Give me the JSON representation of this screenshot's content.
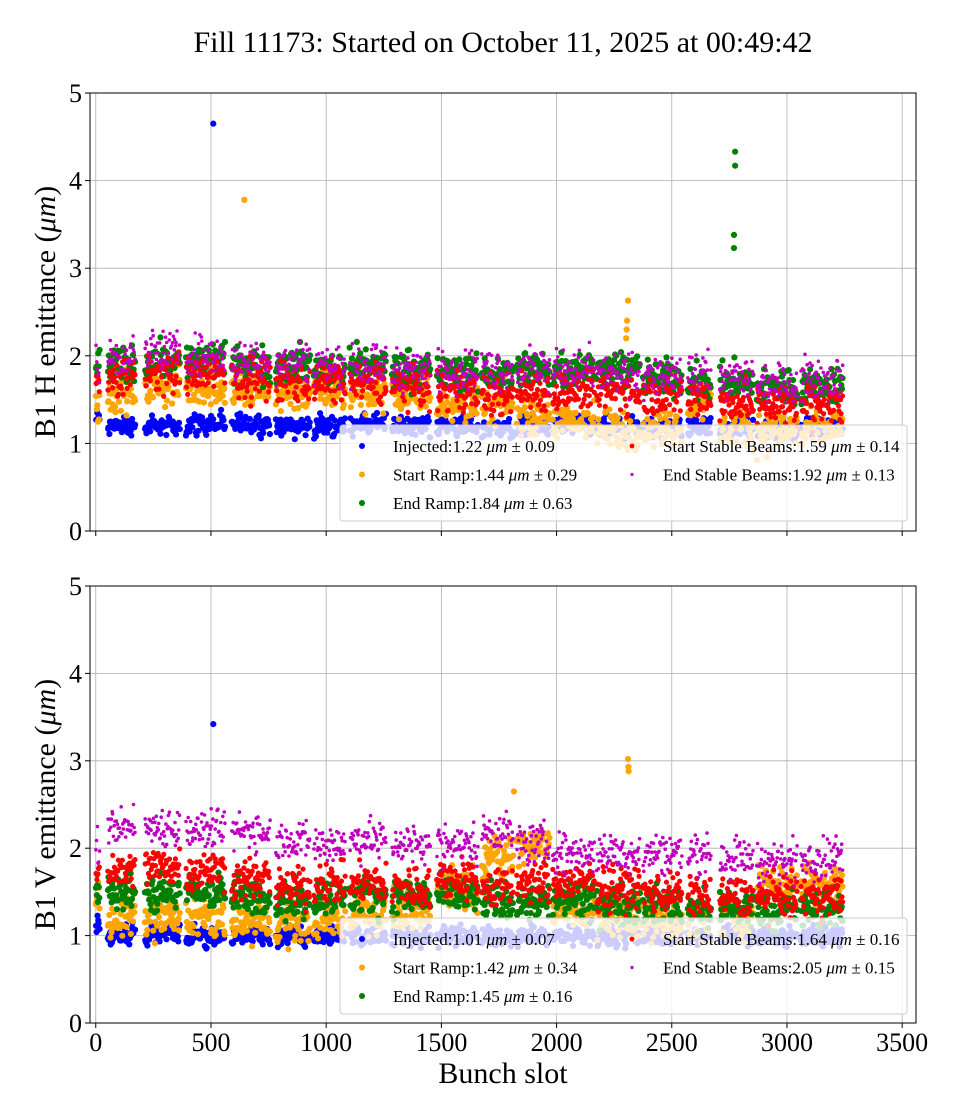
{
  "chart_data": {
    "title": "Fill 11173: Started on October 11, 2025 at 00:49:42",
    "xlabel": "Bunch slot",
    "xticks": [
      "0",
      "500",
      "1000",
      "1500",
      "2000",
      "2500",
      "3000",
      "3500"
    ],
    "xlim": [
      -25,
      3560
    ],
    "trains": [
      [
        0,
        17
      ],
      [
        52,
        169
      ],
      [
        213,
        365
      ],
      [
        391,
        560
      ],
      [
        590,
        755
      ],
      [
        781,
        929
      ],
      [
        946,
        1081
      ],
      [
        1102,
        1259
      ],
      [
        1285,
        1450
      ],
      [
        1480,
        1658
      ],
      [
        1675,
        1810
      ],
      [
        1827,
        1970
      ],
      [
        1983,
        2165
      ],
      [
        2174,
        2361
      ],
      [
        2374,
        2543
      ],
      [
        2569,
        2669
      ],
      [
        2708,
        2852
      ],
      [
        2869,
        3043
      ],
      [
        3060,
        3242
      ]
    ],
    "colors": {
      "Injected": "#0000ff",
      "Start Ramp": "#ffa500",
      "End Ramp": "#008000",
      "Start Stable Beams": "#ff0000",
      "End Stable Beams": "#bf00bf"
    },
    "grid": true,
    "legend_placement": "lower-right",
    "panels": [
      {
        "type": "scatter",
        "ylabel": "B1 H emittance (μm)",
        "ylabel_text": "B1 H emittance (",
        "ylabel_unit": "μm",
        "ylabel_close": ")",
        "ylim": [
          0,
          5
        ],
        "yticks": [
          "0",
          "1",
          "2",
          "3",
          "4",
          "5"
        ],
        "series": [
          {
            "name": "Injected",
            "mean": "1.22",
            "std": "0.09",
            "unit": "μm",
            "per_train_level": [
              1.3,
              1.2,
              1.2,
              1.22,
              1.22,
              1.2,
              1.2,
              1.22,
              1.2,
              1.2,
              1.18,
              1.2,
              1.2,
              1.18,
              1.18,
              1.2,
              1.18,
              1.15,
              1.2
            ],
            "outliers": [
              [
                510,
                4.65
              ]
            ]
          },
          {
            "name": "Start Ramp",
            "mean": "1.44",
            "std": "0.29",
            "unit": "μm",
            "per_train_level": [
              1.5,
              1.6,
              1.65,
              1.65,
              1.6,
              1.6,
              1.6,
              1.6,
              1.55,
              1.5,
              1.45,
              1.35,
              1.25,
              1.15,
              1.2,
              1.5,
              1.15,
              1.15,
              1.15
            ],
            "outliers": [
              [
                645,
                3.78
              ],
              [
                2310,
                2.63
              ],
              [
                2306,
                2.4
              ],
              [
                2304,
                2.3
              ],
              [
                2302,
                2.2
              ]
            ]
          },
          {
            "name": "End Ramp",
            "mean": "1.84",
            "std": "0.63",
            "unit": "μm",
            "per_train_level": [
              1.95,
              1.9,
              1.95,
              1.95,
              1.9,
              1.9,
              1.85,
              1.9,
              1.85,
              1.8,
              1.8,
              1.85,
              1.85,
              1.85,
              1.75,
              1.7,
              1.7,
              1.65,
              1.65
            ],
            "outliers": [
              [
                2775,
                4.33
              ],
              [
                2775,
                4.17
              ],
              [
                2770,
                3.38
              ],
              [
                2770,
                3.23
              ]
            ]
          },
          {
            "name": "Start Stable Beams",
            "mean": "1.59",
            "std": "0.14",
            "unit": "μm",
            "per_train_level": [
              1.75,
              1.75,
              1.8,
              1.8,
              1.75,
              1.7,
              1.7,
              1.7,
              1.65,
              1.6,
              1.55,
              1.6,
              1.6,
              1.6,
              1.55,
              1.55,
              1.45,
              1.45,
              1.45
            ],
            "outliers": []
          },
          {
            "name": "End Stable Beams",
            "mean": "1.92",
            "std": "0.13",
            "unit": "μm",
            "per_train_level": [
              1.95,
              2.0,
              2.05,
              2.0,
              1.95,
              1.95,
              1.9,
              1.9,
              1.85,
              1.85,
              1.85,
              1.85,
              1.85,
              1.8,
              1.75,
              1.8,
              1.75,
              1.7,
              1.75
            ],
            "outliers": []
          }
        ]
      },
      {
        "type": "scatter",
        "ylabel": "B1 V emittance (μm)",
        "ylabel_text": "B1 V emittance (",
        "ylabel_unit": "μm",
        "ylabel_close": ")",
        "ylim": [
          0,
          5
        ],
        "yticks": [
          "0",
          "1",
          "2",
          "3",
          "4",
          "5"
        ],
        "series": [
          {
            "name": "Injected",
            "mean": "1.01",
            "std": "0.07",
            "unit": "μm",
            "per_train_level": [
              1.15,
              1.0,
              1.02,
              1.0,
              1.0,
              1.0,
              1.0,
              1.0,
              1.0,
              1.0,
              1.0,
              1.0,
              1.0,
              1.0,
              1.0,
              1.0,
              1.0,
              1.0,
              1.0
            ],
            "outliers": [
              [
                510,
                3.42
              ]
            ]
          },
          {
            "name": "Start Ramp",
            "mean": "1.42",
            "std": "0.34",
            "unit": "μm",
            "per_train_level": [
              1.4,
              1.2,
              1.2,
              1.2,
              1.15,
              1.15,
              1.2,
              1.25,
              1.3,
              1.55,
              1.9,
              2.05,
              1.3,
              1.2,
              1.15,
              1.15,
              1.2,
              1.6,
              1.6
            ],
            "outliers": [
              [
                2310,
                3.02
              ],
              [
                2312,
                2.93
              ],
              [
                2313,
                2.88
              ],
              [
                1815,
                2.65
              ]
            ]
          },
          {
            "name": "End Ramp",
            "mean": "1.45",
            "std": "0.16",
            "unit": "μm",
            "per_train_level": [
              1.5,
              1.5,
              1.5,
              1.5,
              1.45,
              1.4,
              1.45,
              1.45,
              1.45,
              1.45,
              1.4,
              1.4,
              1.4,
              1.35,
              1.35,
              1.3,
              1.3,
              1.3,
              1.3
            ],
            "outliers": []
          },
          {
            "name": "Start Stable Beams",
            "mean": "1.64",
            "std": "0.16",
            "unit": "μm",
            "per_train_level": [
              1.75,
              1.75,
              1.8,
              1.75,
              1.65,
              1.55,
              1.6,
              1.6,
              1.55,
              1.65,
              1.55,
              1.6,
              1.6,
              1.55,
              1.5,
              1.45,
              1.45,
              1.45,
              1.45
            ],
            "outliers": []
          },
          {
            "name": "End Stable Beams",
            "mean": "2.05",
            "std": "0.15",
            "unit": "μm",
            "per_train_level": [
              2.05,
              2.25,
              2.25,
              2.2,
              2.2,
              2.1,
              2.05,
              2.1,
              2.05,
              2.05,
              2.2,
              2.05,
              1.95,
              1.95,
              1.95,
              1.95,
              1.9,
              1.85,
              1.9
            ],
            "outliers": []
          }
        ]
      }
    ]
  }
}
